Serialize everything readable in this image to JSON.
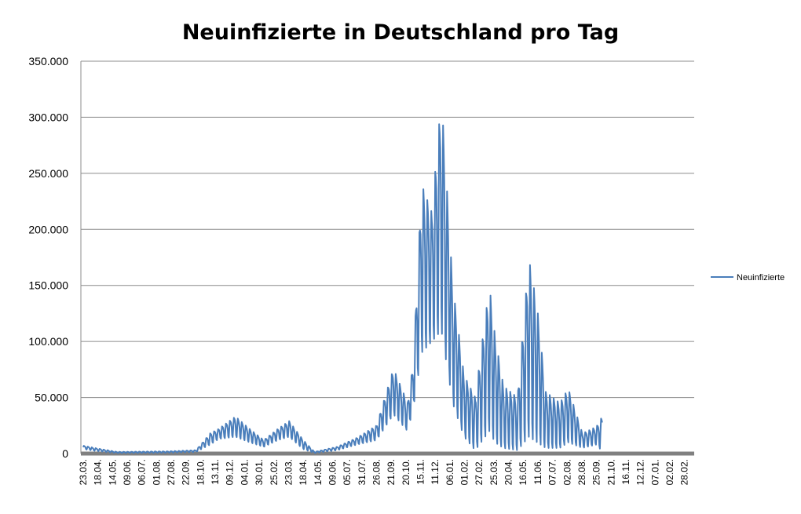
{
  "chart_data": {
    "type": "line",
    "title": "Neuinfizierte in Deutschland pro Tag",
    "xlabel": "",
    "ylabel": "",
    "ylim": [
      0,
      350000
    ],
    "y_ticks": [
      0,
      50000,
      100000,
      150000,
      200000,
      250000,
      300000,
      350000
    ],
    "y_tick_labels": [
      "0",
      "50.000",
      "100.000",
      "150.000",
      "200.000",
      "250.000",
      "300.000",
      "350.000"
    ],
    "x_tick_labels": [
      "23.03.",
      "18.04.",
      "14.05.",
      "09.06.",
      "06.07.",
      "01.08.",
      "27.08.",
      "22.09.",
      "18.10.",
      "13.11.",
      "09.12.",
      "04.01.",
      "30.01.",
      "25.02.",
      "23.03.",
      "18.04.",
      "14.05.",
      "09.06.",
      "05.07.",
      "31.07.",
      "26.08.",
      "21.09.",
      "20.10.",
      "15.11.",
      "11.12.",
      "06.01.",
      "01.02.",
      "27.02.",
      "25.03.",
      "20.04.",
      "16.05.",
      "11.06.",
      "07.07.",
      "02.08.",
      "28.08.",
      "25.09.",
      "21.10.",
      "16.11.",
      "12.12.",
      "07.01.",
      "02.02.",
      "28.02."
    ],
    "grid": true,
    "legend_position": "right",
    "series": [
      {
        "name": "Neuinfizierte",
        "color": "#4a7ebb",
        "note": "daily values; weekday/weekend oscillation; one tick per ~26 days starting 23.03.",
        "anchors": [
          {
            "day": 0,
            "base": 4000,
            "peak": 7000
          },
          {
            "day": 20,
            "base": 2500,
            "peak": 5000
          },
          {
            "day": 60,
            "base": 500,
            "peak": 1500
          },
          {
            "day": 150,
            "base": 800,
            "peak": 2000
          },
          {
            "day": 200,
            "base": 1500,
            "peak": 3000
          },
          {
            "day": 225,
            "base": 8000,
            "peak": 18000
          },
          {
            "day": 240,
            "base": 13000,
            "peak": 22000
          },
          {
            "day": 270,
            "base": 15000,
            "peak": 33000
          },
          {
            "day": 295,
            "base": 10000,
            "peak": 22000
          },
          {
            "day": 320,
            "base": 6000,
            "peak": 12000
          },
          {
            "day": 345,
            "base": 12000,
            "peak": 22000
          },
          {
            "day": 365,
            "base": 15000,
            "peak": 29000
          },
          {
            "day": 390,
            "base": 4000,
            "peak": 12000
          },
          {
            "day": 410,
            "base": 500,
            "peak": 1500
          },
          {
            "day": 450,
            "base": 3000,
            "peak": 6000
          },
          {
            "day": 485,
            "base": 8000,
            "peak": 14000
          },
          {
            "day": 520,
            "base": 12000,
            "peak": 25000
          },
          {
            "day": 550,
            "base": 35000,
            "peak": 76000
          },
          {
            "day": 575,
            "base": 20000,
            "peak": 45000
          },
          {
            "day": 585,
            "base": 40000,
            "peak": 80000
          },
          {
            "day": 600,
            "base": 90000,
            "peak": 240000
          },
          {
            "day": 618,
            "base": 100000,
            "peak": 215000
          },
          {
            "day": 635,
            "base": 110000,
            "peak": 318000
          },
          {
            "day": 655,
            "base": 45000,
            "peak": 150000
          },
          {
            "day": 675,
            "base": 15000,
            "peak": 70000
          },
          {
            "day": 695,
            "base": 3000,
            "peak": 50000
          },
          {
            "day": 720,
            "base": 20000,
            "peak": 150000
          },
          {
            "day": 730,
            "base": 10000,
            "peak": 105000
          },
          {
            "day": 745,
            "base": 5000,
            "peak": 60000
          },
          {
            "day": 770,
            "base": 3000,
            "peak": 50000
          },
          {
            "day": 790,
            "base": 15000,
            "peak": 174000
          },
          {
            "day": 805,
            "base": 10000,
            "peak": 130000
          },
          {
            "day": 820,
            "base": 5000,
            "peak": 55000
          },
          {
            "day": 845,
            "base": 5000,
            "peak": 45000
          },
          {
            "day": 860,
            "base": 10000,
            "peak": 58000
          },
          {
            "day": 885,
            "base": 5000,
            "peak": 18000
          },
          {
            "day": 910,
            "base": 8000,
            "peak": 24000
          },
          {
            "day": 920,
            "base": 2000,
            "peak": 33000
          }
        ]
      }
    ]
  }
}
